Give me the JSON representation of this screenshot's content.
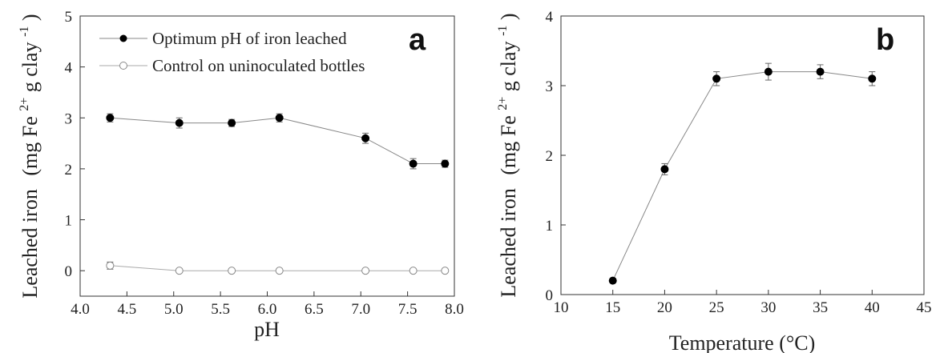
{
  "chart_data": [
    {
      "type": "line",
      "panel_label": "a",
      "xlabel": "pH",
      "ylabel": "Leached iron",
      "yunit": {
        "pre": "(mg Fe",
        "sup1": "2+",
        "mid": " g clay",
        "sup2": "-1",
        "post": ")"
      },
      "xlim": [
        4.0,
        8.0
      ],
      "ylim": [
        -0.5,
        5
      ],
      "xticks": [
        4.0,
        4.5,
        5.0,
        5.5,
        6.0,
        6.5,
        7.0,
        7.5,
        8.0
      ],
      "xtick_labels": [
        "4.0",
        "4.5",
        "5.0",
        "5.5",
        "6.0",
        "6.5",
        "7.0",
        "7.5",
        "8.0"
      ],
      "yticks": [
        0,
        1,
        2,
        3,
        4,
        5
      ],
      "ytick_labels": [
        "0",
        "1",
        "2",
        "3",
        "4",
        "5"
      ],
      "legend_position": "top-left",
      "series": [
        {
          "name": "Optimum pH of iron leached",
          "marker": "filled",
          "x": [
            4.32,
            5.06,
            5.62,
            6.13,
            7.05,
            7.56,
            7.9
          ],
          "y": [
            3.0,
            2.9,
            2.9,
            3.0,
            2.6,
            2.1,
            2.1
          ],
          "err": [
            0.08,
            0.1,
            0.07,
            0.08,
            0.1,
            0.1,
            0.07
          ]
        },
        {
          "name": "Control on uninoculated bottles",
          "marker": "open",
          "x": [
            4.32,
            5.06,
            5.62,
            6.13,
            7.05,
            7.56,
            7.9
          ],
          "y": [
            0.1,
            0.0,
            0.0,
            0.0,
            0.0,
            0.0,
            0.0
          ],
          "err": [
            0.07,
            0,
            0,
            0,
            0,
            0,
            0
          ]
        }
      ]
    },
    {
      "type": "line",
      "panel_label": "b",
      "xlabel": "Temperature (°C)",
      "ylabel": "Leached iron",
      "yunit": {
        "pre": "(mg Fe",
        "sup1": "2+",
        "mid": " g clay",
        "sup2": "-1",
        "post": ")"
      },
      "xlim": [
        10,
        45
      ],
      "ylim": [
        0,
        4
      ],
      "xticks": [
        10,
        15,
        20,
        25,
        30,
        35,
        40,
        45
      ],
      "xtick_labels": [
        "10",
        "15",
        "20",
        "25",
        "30",
        "35",
        "40",
        "45"
      ],
      "yticks": [
        0,
        1,
        2,
        3,
        4
      ],
      "ytick_labels": [
        "0",
        "1",
        "2",
        "3",
        "4"
      ],
      "series": [
        {
          "marker": "filled",
          "x": [
            15,
            20,
            25,
            30,
            35,
            40
          ],
          "y": [
            0.2,
            1.8,
            3.1,
            3.2,
            3.2,
            3.1
          ],
          "err": [
            0.03,
            0.08,
            0.1,
            0.12,
            0.1,
            0.1
          ]
        }
      ]
    }
  ]
}
